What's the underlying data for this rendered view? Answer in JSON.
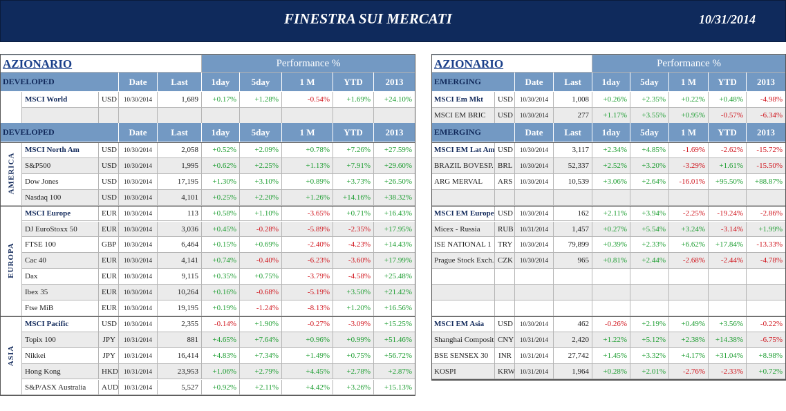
{
  "header": {
    "title": "FINESTRA SUI MERCATI",
    "date": "10/31/2014"
  },
  "left": {
    "title": "AZIONARIO",
    "perf": "Performance %",
    "header_top": [
      "DEVELOPED",
      "Date",
      "Last",
      "1day",
      "5day",
      "1 M",
      "YTD",
      "2013"
    ],
    "top_rows": [
      [
        "MSCI World",
        "USD",
        "10/30/2014",
        "1,689",
        "+0.17%",
        "+1.28%",
        "-0.54%",
        "+1.69%",
        "+24.10%"
      ]
    ],
    "header": [
      "DEVELOPED",
      "Date",
      "Last",
      "1day",
      "5day",
      "1 M",
      "YTD",
      "2013"
    ],
    "groups": [
      {
        "region": "AMERICA",
        "rows": [
          [
            "MSCI North Am",
            "USD",
            "10/30/2014",
            "2,058",
            "+0.52%",
            "+2.09%",
            "+0.78%",
            "+7.26%",
            "+27.59%"
          ],
          [
            "S&P500",
            "USD",
            "10/30/2014",
            "1,995",
            "+0.62%",
            "+2.25%",
            "+1.13%",
            "+7.91%",
            "+29.60%"
          ],
          [
            "Dow Jones",
            "USD",
            "10/30/2014",
            "17,195",
            "+1.30%",
            "+3.10%",
            "+0.89%",
            "+3.73%",
            "+26.50%"
          ],
          [
            "Nasdaq 100",
            "USD",
            "10/30/2014",
            "4,101",
            "+0.25%",
            "+2.20%",
            "+1.26%",
            "+14.16%",
            "+38.32%"
          ]
        ]
      },
      {
        "region": "EUROPA",
        "rows": [
          [
            "MSCI Europe",
            "EUR",
            "10/30/2014",
            "113",
            "+0.58%",
            "+1.10%",
            "-3.65%",
            "+0.71%",
            "+16.43%"
          ],
          [
            "DJ EuroStoxx 50",
            "EUR",
            "10/30/2014",
            "3,036",
            "+0.45%",
            "-0.28%",
            "-5.89%",
            "-2.35%",
            "+17.95%"
          ],
          [
            "FTSE 100",
            "GBP",
            "10/30/2014",
            "6,464",
            "+0.15%",
            "+0.69%",
            "-2.40%",
            "-4.23%",
            "+14.43%"
          ],
          [
            "Cac 40",
            "EUR",
            "10/30/2014",
            "4,141",
            "+0.74%",
            "-0.40%",
            "-6.23%",
            "-3.60%",
            "+17.99%"
          ],
          [
            "Dax",
            "EUR",
            "10/30/2014",
            "9,115",
            "+0.35%",
            "+0.75%",
            "-3.79%",
            "-4.58%",
            "+25.48%"
          ],
          [
            "Ibex 35",
            "EUR",
            "10/30/2014",
            "10,264",
            "+0.16%",
            "-0.68%",
            "-5.19%",
            "+3.50%",
            "+21.42%"
          ],
          [
            "Ftse MiB",
            "EUR",
            "10/30/2014",
            "19,195",
            "+0.19%",
            "-1.24%",
            "-8.13%",
            "+1.20%",
            "+16.56%"
          ]
        ]
      },
      {
        "region": "ASIA",
        "rows": [
          [
            "MSCI Pacific",
            "USD",
            "10/30/2014",
            "2,355",
            "-0.14%",
            "+1.90%",
            "-0.27%",
            "-3.09%",
            "+15.25%"
          ],
          [
            "Topix 100",
            "JPY",
            "10/31/2014",
            "881",
            "+4.65%",
            "+7.64%",
            "+0.96%",
            "+0.99%",
            "+51.46%"
          ],
          [
            "Nikkei",
            "JPY",
            "10/31/2014",
            "16,414",
            "+4.83%",
            "+7.34%",
            "+1.49%",
            "+0.75%",
            "+56.72%"
          ],
          [
            "Hong Kong",
            "HKD",
            "10/31/2014",
            "23,953",
            "+1.06%",
            "+2.79%",
            "+4.45%",
            "+2.78%",
            "+2.87%"
          ],
          [
            "S&P/ASX Australia",
            "AUD",
            "10/31/2014",
            "5,527",
            "+0.92%",
            "+2.11%",
            "+4.42%",
            "+3.26%",
            "+15.13%"
          ]
        ]
      }
    ]
  },
  "right": {
    "title": "AZIONARIO",
    "perf": "Performance %",
    "header_top": [
      "EMERGING",
      "Date",
      "Last",
      "1day",
      "5day",
      "1 M",
      "YTD",
      "2013"
    ],
    "top_rows": [
      [
        "MSCI Em Mkt",
        "USD",
        "10/30/2014",
        "1,008",
        "+0.26%",
        "+2.35%",
        "+0.22%",
        "+0.48%",
        "-4.98%"
      ],
      [
        "MSCI EM BRIC",
        "USD",
        "10/30/2014",
        "277",
        "+1.17%",
        "+3.55%",
        "+0.95%",
        "-0.57%",
        "-6.34%"
      ]
    ],
    "header": [
      "EMERGING",
      "Date",
      "Last",
      "1day",
      "5day",
      "1 M",
      "YTD",
      "2013"
    ],
    "groups": [
      {
        "rows": [
          [
            "MSCI EM Lat Am",
            "USD",
            "10/30/2014",
            "3,117",
            "+2.34%",
            "+4.85%",
            "-1.69%",
            "-2.62%",
            "-15.72%"
          ],
          [
            "BRAZIL BOVESP.",
            "BRL",
            "10/30/2014",
            "52,337",
            "+2.52%",
            "+3.20%",
            "-3.29%",
            "+1.61%",
            "-15.50%"
          ],
          [
            "ARG MERVAL",
            "ARS",
            "10/30/2014",
            "10,539",
            "+3.06%",
            "+2.64%",
            "-16.01%",
            "+95.50%",
            "+88.87%"
          ]
        ]
      },
      {
        "rows": [
          [
            "MSCI EM Europe",
            "USD",
            "10/30/2014",
            "162",
            "+2.11%",
            "+3.94%",
            "-2.25%",
            "-19.24%",
            "-2.86%"
          ],
          [
            "Micex - Russia",
            "RUB",
            "10/31/2014",
            "1,457",
            "+0.27%",
            "+5.54%",
            "+3.24%",
            "-3.14%",
            "+1.99%"
          ],
          [
            "ISE NATIONAL 1",
            "TRY",
            "10/30/2014",
            "79,899",
            "+0.39%",
            "+2.33%",
            "+6.62%",
            "+17.84%",
            "-13.33%"
          ],
          [
            "Prague Stock Exch.",
            "CZK",
            "10/30/2014",
            "965",
            "+0.81%",
            "+2.44%",
            "-2.68%",
            "-2.44%",
            "-4.78%"
          ]
        ]
      },
      {
        "rows": [
          [
            "MSCI EM Asia",
            "USD",
            "10/30/2014",
            "462",
            "-0.26%",
            "+2.19%",
            "+0.49%",
            "+3.56%",
            "-0.22%"
          ],
          [
            "Shanghai Composite",
            "CNY",
            "10/31/2014",
            "2,420",
            "+1.22%",
            "+5.12%",
            "+2.38%",
            "+14.38%",
            "-6.75%"
          ],
          [
            "BSE SENSEX 30",
            "INR",
            "10/31/2014",
            "27,742",
            "+1.45%",
            "+3.32%",
            "+4.17%",
            "+31.04%",
            "+8.98%"
          ],
          [
            "KOSPI",
            "KRW",
            "10/31/2014",
            "1,964",
            "+0.28%",
            "+2.01%",
            "-2.76%",
            "-2.33%",
            "+0.72%"
          ]
        ]
      }
    ]
  }
}
